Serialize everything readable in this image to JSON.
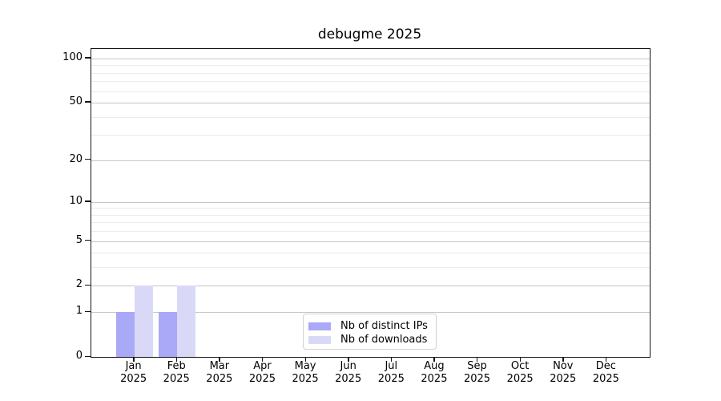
{
  "chart_data": {
    "type": "bar",
    "title": "debugme 2025",
    "categories": [
      {
        "month": "Jan",
        "year": "2025"
      },
      {
        "month": "Feb",
        "year": "2025"
      },
      {
        "month": "Mar",
        "year": "2025"
      },
      {
        "month": "Apr",
        "year": "2025"
      },
      {
        "month": "May",
        "year": "2025"
      },
      {
        "month": "Jun",
        "year": "2025"
      },
      {
        "month": "Jul",
        "year": "2025"
      },
      {
        "month": "Aug",
        "year": "2025"
      },
      {
        "month": "Sep",
        "year": "2025"
      },
      {
        "month": "Oct",
        "year": "2025"
      },
      {
        "month": "Nov",
        "year": "2025"
      },
      {
        "month": "Dec",
        "year": "2025"
      }
    ],
    "series": [
      {
        "name": "Nb of distinct IPs",
        "color": "#a9a9f7",
        "values": [
          1,
          1,
          0,
          0,
          0,
          0,
          0,
          0,
          0,
          0,
          0,
          0
        ]
      },
      {
        "name": "Nb of downloads",
        "color": "#d9d9f7",
        "values": [
          2,
          2,
          0,
          0,
          0,
          0,
          0,
          0,
          0,
          0,
          0,
          0
        ]
      }
    ],
    "xlabel": "",
    "ylabel": "",
    "yscale": "log1p",
    "ylim": [
      0,
      116
    ],
    "yticks": [
      0,
      1,
      2,
      5,
      10,
      20,
      50,
      100
    ],
    "yticks_minor": [
      3,
      4,
      6,
      7,
      8,
      9,
      30,
      40,
      60,
      70,
      80,
      90
    ],
    "grid": "horizontal",
    "legend_position": "inside-bottom-center",
    "colors": {
      "grid_major": "#c6c6c6",
      "grid_minor": "#ebebeb",
      "spine": "#151515",
      "background": "#ffffff"
    }
  }
}
